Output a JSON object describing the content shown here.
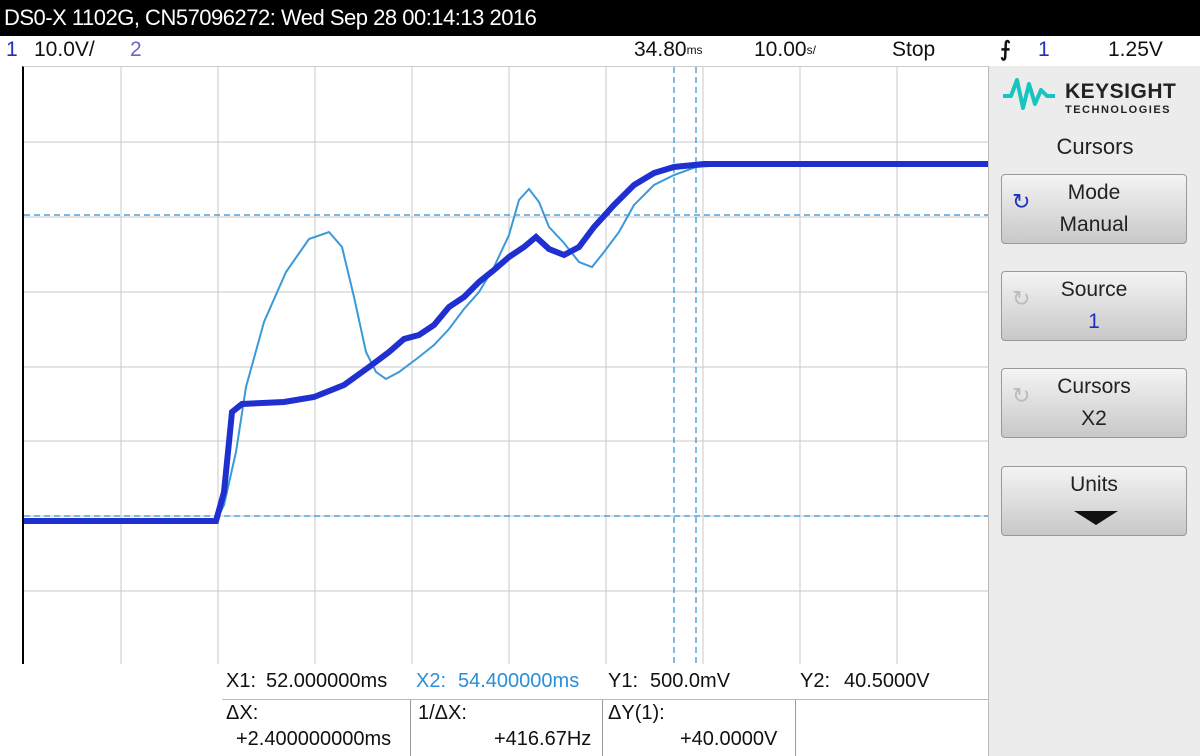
{
  "title": "DS0-X 1102G, CN57096272: Wed Sep 28 00:14:13 2016",
  "status": {
    "ch1_num": "1",
    "ch1_scale": "10.0V/",
    "ch2_num": "2",
    "time_delay": "34.80",
    "time_delay_unit": "ms",
    "time_scale": "10.00",
    "time_scale_unit": "s/",
    "run_state": "Stop",
    "trigger_icon": "trigger-edge-icon",
    "trigger_source": "1",
    "trigger_level": "1.25V"
  },
  "panel": {
    "brand": "KEYSIGHT",
    "brand_sub": "TECHNOLOGIES",
    "menu_title": "Cursors",
    "mode_label": "Mode",
    "mode_value": "Manual",
    "source_label": "Source",
    "source_value": "1",
    "cursors_label": "Cursors",
    "cursors_value": "X2",
    "units_label": "Units"
  },
  "readout": {
    "x1_label": "X1:",
    "x1_value": "52.000000ms",
    "x2_label": "X2:",
    "x2_value": "54.400000ms",
    "y1_label": "Y1:",
    "y1_value": "500.0mV",
    "y2_label": "Y2:",
    "y2_value": "40.5000V",
    "dx_label": "ΔX:",
    "dx_value": "+2.400000000ms",
    "inv_dx_label": "1/ΔX:",
    "inv_dx_value": "+416.67Hz",
    "dy_label": "ΔY(1):",
    "dy_value": "+40.0000V"
  },
  "colors": {
    "ch1": "#1f2fd0",
    "ch2": "#3a9ad8",
    "cursor": "#2a8fd6",
    "grid": "#c8c8c8"
  }
}
